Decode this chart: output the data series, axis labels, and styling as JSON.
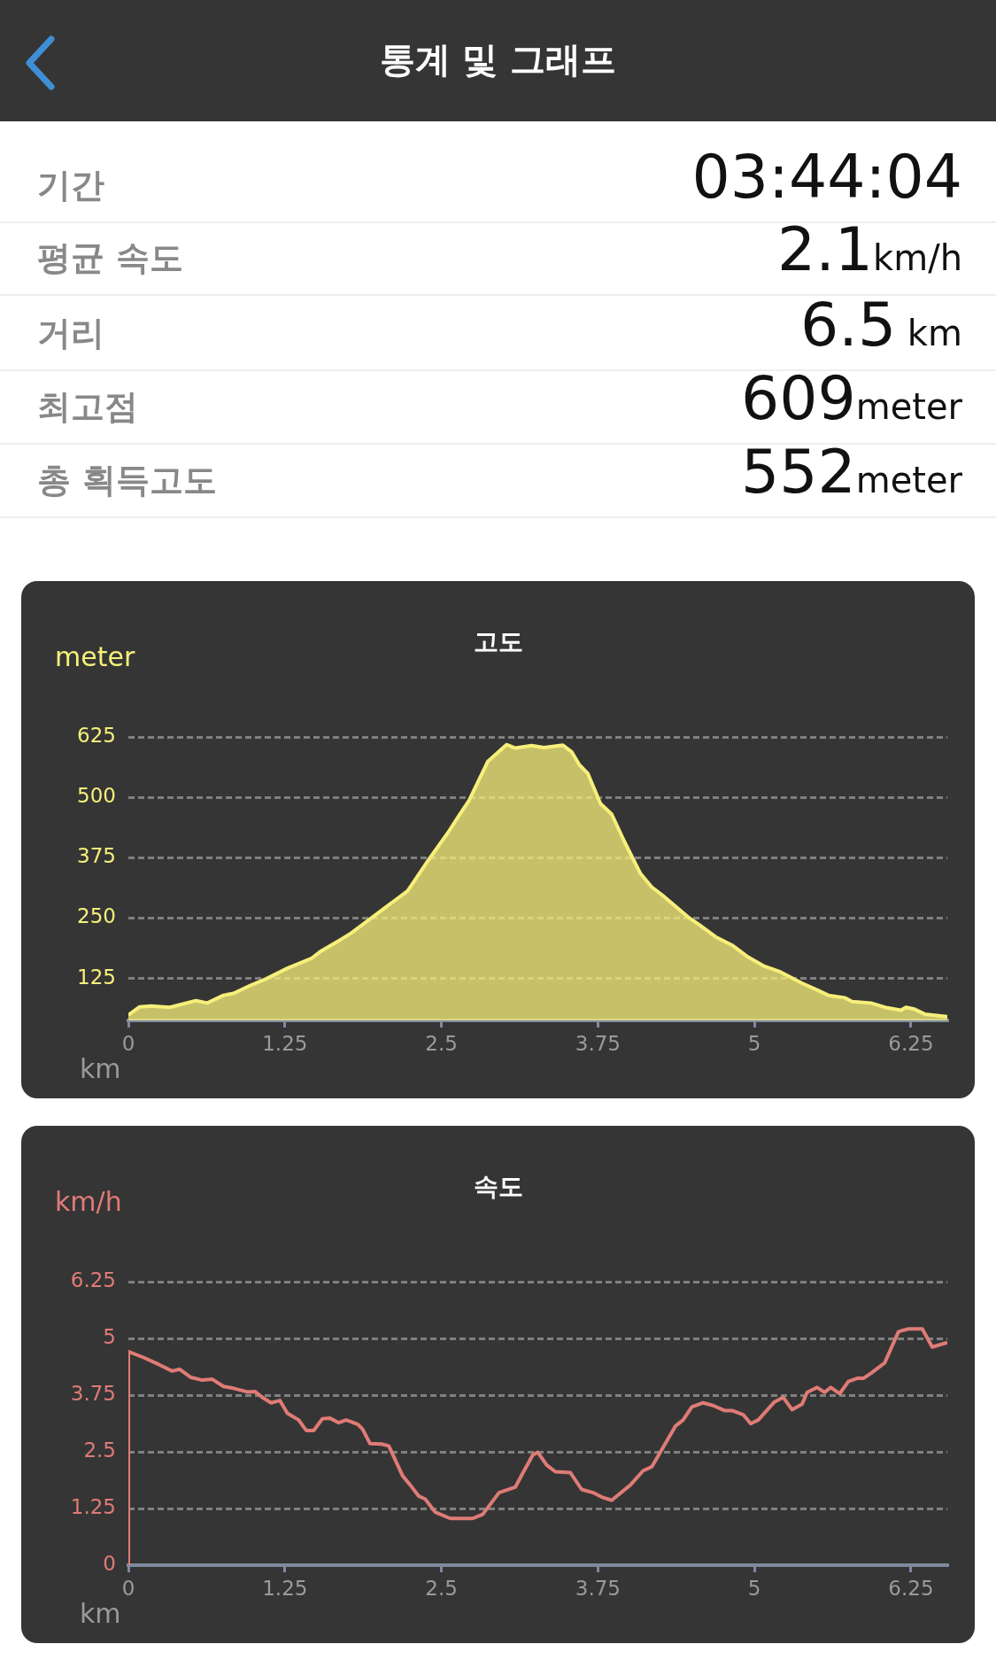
{
  "chart_data": [
    {
      "type": "other",
      "title": "통계 및 그래프",
      "annotations": [
        "기간",
        "03:44:04",
        "평균 속도",
        "2.1km/h",
        "거리",
        "6.5 km",
        "최고점",
        "609meter",
        "총 획득고도",
        "552meter"
      ]
    },
    {
      "type": "area",
      "title": "고도",
      "ylabel": "meter",
      "xlabel": "km",
      "xlim": [
        0,
        6.54
      ],
      "xticks": [
        0,
        1.25,
        2.5,
        3.75,
        5,
        6.25
      ],
      "ylim": [
        38,
        625
      ],
      "yticks": [
        125,
        250,
        375,
        500,
        625
      ],
      "grid": "y",
      "legend": false,
      "marker": "none",
      "series": [
        {
          "color": "#f7ef7a",
          "x": [
            0,
            0.09,
            0.18,
            0.33,
            0.54,
            0.63,
            0.76,
            0.84,
            0.97,
            1.1,
            1.27,
            1.46,
            1.53,
            1.7,
            1.78,
            1.91,
            2.08,
            2.23,
            2.38,
            2.55,
            2.64,
            2.72,
            2.87,
            3.02,
            3.09,
            3.22,
            3.32,
            3.47,
            3.54,
            3.6,
            3.67,
            3.77,
            3.86,
            3.96,
            4.09,
            4.18,
            4.28,
            4.48,
            4.56,
            4.69,
            4.82,
            4.95,
            5.08,
            5.21,
            5.38,
            5.5,
            5.59,
            5.72,
            5.78,
            5.93,
            6.06,
            6.17,
            6.21,
            6.27,
            6.36,
            6.54
          ],
          "values": [
            49,
            66,
            68,
            65,
            79,
            74,
            90,
            94,
            110,
            124,
            146,
            166,
            180,
            206,
            219,
            244,
            277,
            306,
            364,
            426,
            462,
            493,
            574,
            609,
            602,
            607,
            603,
            608,
            594,
            568,
            549,
            487,
            465,
            409,
            342,
            314,
            294,
            250,
            236,
            211,
            194,
            169,
            150,
            138,
            115,
            101,
            90,
            85,
            77,
            74,
            64,
            59,
            65,
            62,
            51,
            46
          ]
        }
      ]
    },
    {
      "type": "line",
      "title": "속도",
      "ylabel": "km/h",
      "xlabel": "km",
      "xlim": [
        0,
        6.54
      ],
      "xticks": [
        0,
        1.25,
        2.5,
        3.75,
        5,
        6.25
      ],
      "ylim": [
        0,
        6.25
      ],
      "yticks": [
        0,
        1.25,
        2.5,
        3.75,
        5,
        6.25
      ],
      "grid": "y",
      "legend": false,
      "marker": "none",
      "series": [
        {
          "color": "#e07b76",
          "x": [
            0,
            0,
            0.12,
            0.24,
            0.35,
            0.41,
            0.5,
            0.59,
            0.67,
            0.76,
            0.84,
            0.95,
            1.01,
            1.08,
            1.14,
            1.21,
            1.27,
            1.36,
            1.42,
            1.48,
            1.55,
            1.61,
            1.68,
            1.74,
            1.83,
            1.87,
            1.93,
            2.02,
            2.08,
            2.19,
            2.25,
            2.32,
            2.37,
            2.45,
            2.57,
            2.75,
            2.83,
            2.96,
            3.09,
            3.15,
            3.23,
            3.27,
            3.34,
            3.41,
            3.53,
            3.62,
            3.71,
            3.79,
            3.86,
            4.01,
            4.11,
            4.18,
            4.29,
            4.37,
            4.43,
            4.5,
            4.59,
            4.67,
            4.76,
            4.82,
            4.91,
            4.97,
            5.03,
            5.16,
            5.23,
            5.3,
            5.38,
            5.42,
            5.5,
            5.56,
            5.61,
            5.68,
            5.75,
            5.82,
            5.87,
            5.93,
            6.04,
            6.15,
            6.23,
            6.34,
            6.42,
            6.54
          ],
          "values": [
            0,
            4.71,
            4.58,
            4.43,
            4.28,
            4.32,
            4.14,
            4.08,
            4.1,
            3.94,
            3.9,
            3.82,
            3.83,
            3.68,
            3.58,
            3.63,
            3.35,
            3.2,
            2.97,
            2.97,
            3.23,
            3.24,
            3.14,
            3.2,
            3.11,
            3.0,
            2.68,
            2.67,
            2.63,
            1.97,
            1.77,
            1.52,
            1.46,
            1.17,
            1.03,
            1.03,
            1.12,
            1.6,
            1.72,
            2.03,
            2.43,
            2.49,
            2.21,
            2.06,
            2.04,
            1.67,
            1.6,
            1.49,
            1.43,
            1.77,
            2.08,
            2.17,
            2.69,
            3.07,
            3.2,
            3.49,
            3.58,
            3.52,
            3.41,
            3.41,
            3.32,
            3.12,
            3.2,
            3.6,
            3.7,
            3.43,
            3.55,
            3.81,
            3.92,
            3.81,
            3.92,
            3.78,
            4.05,
            4.12,
            4.12,
            4.23,
            4.46,
            5.15,
            5.21,
            5.21,
            4.81,
            4.91
          ]
        }
      ]
    }
  ]
}
